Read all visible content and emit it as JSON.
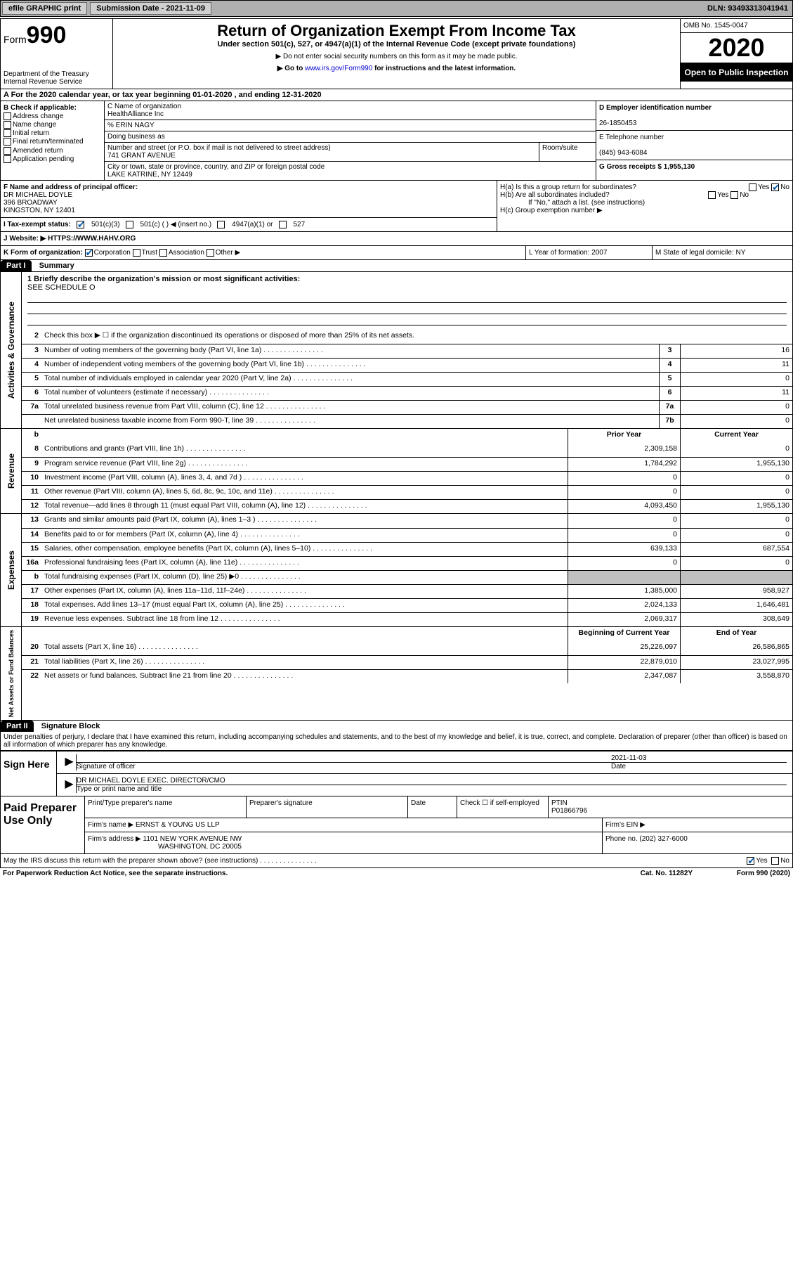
{
  "toolbar": {
    "efile": "efile GRAPHIC print",
    "sub_label": "Submission Date - 2021-11-09",
    "dln": "DLN: 93493313041941"
  },
  "header": {
    "form_label": "Form",
    "form_num": "990",
    "dept": "Department of the Treasury\nInternal Revenue Service",
    "title": "Return of Organization Exempt From Income Tax",
    "subtitle": "Under section 501(c), 527, or 4947(a)(1) of the Internal Revenue Code (except private foundations)",
    "note1": "▶ Do not enter social security numbers on this form as it may be made public.",
    "note2_pre": "▶ Go to ",
    "note2_link": "www.irs.gov/Form990",
    "note2_post": " for instructions and the latest information.",
    "omb": "OMB No. 1545-0047",
    "year": "2020",
    "open": "Open to Public Inspection"
  },
  "row_a": "A For the 2020 calendar year, or tax year beginning 01-01-2020    , and ending 12-31-2020",
  "b": {
    "label": "B Check if applicable:",
    "opts": [
      "Address change",
      "Name change",
      "Initial return",
      "Final return/terminated",
      "Amended return",
      "Application pending"
    ]
  },
  "c": {
    "name_label": "C Name of organization",
    "name": "HealthAlliance Inc",
    "care_of": "% ERIN NAGY",
    "dba_label": "Doing business as",
    "street_label": "Number and street (or P.O. box if mail is not delivered to street address)",
    "street": "741 GRANT AVENUE",
    "suite_label": "Room/suite",
    "city_label": "City or town, state or province, country, and ZIP or foreign postal code",
    "city": "LAKE KATRINE, NY  12449"
  },
  "d": {
    "ein_label": "D Employer identification number",
    "ein": "26-1850453",
    "tel_label": "E Telephone number",
    "tel": "(845) 943-6084",
    "gross_label": "G Gross receipts $ 1,955,130"
  },
  "f": {
    "label": "F  Name and address of principal officer:",
    "name": "DR MICHAEL DOYLE",
    "addr1": "396 BROADWAY",
    "addr2": "KINGSTON, NY  12401"
  },
  "h": {
    "a": "H(a)  Is this a group return for subordinates?",
    "b": "H(b)  Are all subordinates included?",
    "b_note": "If \"No,\" attach a list. (see instructions)",
    "c": "H(c)  Group exemption number ▶"
  },
  "i": {
    "label": "I  Tax-exempt status:",
    "o1": "501(c)(3)",
    "o2": "501(c) (  ) ◀ (insert no.)",
    "o3": "4947(a)(1) or",
    "o4": "527"
  },
  "j": {
    "label": "J  Website: ▶",
    "url": " HTTPS://WWW.HAHV.ORG"
  },
  "k": {
    "label": "K Form of organization:",
    "opts": [
      "Corporation",
      "Trust",
      "Association",
      "Other ▶"
    ],
    "l": "L Year of formation: 2007",
    "m": "M State of legal domicile: NY"
  },
  "part1": {
    "hdr": "Part I",
    "title": "Summary"
  },
  "mission": {
    "q": "1  Briefly describe the organization's mission or most significant activities:",
    "ans": "SEE SCHEDULE O"
  },
  "gov_lines": [
    {
      "n": "2",
      "t": "Check this box ▶ ☐  if the organization discontinued its operations or disposed of more than 25% of its net assets."
    },
    {
      "n": "3",
      "t": "Number of voting members of the governing body (Part VI, line 1a)",
      "b": "3",
      "v": "16"
    },
    {
      "n": "4",
      "t": "Number of independent voting members of the governing body (Part VI, line 1b)",
      "b": "4",
      "v": "11"
    },
    {
      "n": "5",
      "t": "Total number of individuals employed in calendar year 2020 (Part V, line 2a)",
      "b": "5",
      "v": "0"
    },
    {
      "n": "6",
      "t": "Total number of volunteers (estimate if necessary)",
      "b": "6",
      "v": "11"
    },
    {
      "n": "7a",
      "t": "Total unrelated business revenue from Part VIII, column (C), line 12",
      "b": "7a",
      "v": "0"
    },
    {
      "n": "",
      "t": "Net unrelated business taxable income from Form 990-T, line 39",
      "b": "7b",
      "v": "0"
    }
  ],
  "rev_hdr": {
    "py": "Prior Year",
    "cy": "Current Year"
  },
  "rev_lines": [
    {
      "n": "8",
      "t": "Contributions and grants (Part VIII, line 1h)",
      "py": "2,309,158",
      "cy": "0"
    },
    {
      "n": "9",
      "t": "Program service revenue (Part VIII, line 2g)",
      "py": "1,784,292",
      "cy": "1,955,130"
    },
    {
      "n": "10",
      "t": "Investment income (Part VIII, column (A), lines 3, 4, and 7d )",
      "py": "0",
      "cy": "0"
    },
    {
      "n": "11",
      "t": "Other revenue (Part VIII, column (A), lines 5, 6d, 8c, 9c, 10c, and 11e)",
      "py": "0",
      "cy": "0"
    },
    {
      "n": "12",
      "t": "Total revenue—add lines 8 through 11 (must equal Part VIII, column (A), line 12)",
      "py": "4,093,450",
      "cy": "1,955,130"
    }
  ],
  "exp_lines": [
    {
      "n": "13",
      "t": "Grants and similar amounts paid (Part IX, column (A), lines 1–3 )",
      "py": "0",
      "cy": "0"
    },
    {
      "n": "14",
      "t": "Benefits paid to or for members (Part IX, column (A), line 4)",
      "py": "0",
      "cy": "0"
    },
    {
      "n": "15",
      "t": "Salaries, other compensation, employee benefits (Part IX, column (A), lines 5–10)",
      "py": "639,133",
      "cy": "687,554"
    },
    {
      "n": "16a",
      "t": "Professional fundraising fees (Part IX, column (A), line 11e)",
      "py": "0",
      "cy": "0"
    },
    {
      "n": "b",
      "t": "Total fundraising expenses (Part IX, column (D), line 25) ▶0",
      "py": "",
      "cy": "",
      "shaded": true
    },
    {
      "n": "17",
      "t": "Other expenses (Part IX, column (A), lines 11a–11d, 11f–24e)",
      "py": "1,385,000",
      "cy": "958,927"
    },
    {
      "n": "18",
      "t": "Total expenses. Add lines 13–17 (must equal Part IX, column (A), line 25)",
      "py": "2,024,133",
      "cy": "1,646,481"
    },
    {
      "n": "19",
      "t": "Revenue less expenses. Subtract line 18 from line 12",
      "py": "2,069,317",
      "cy": "308,649"
    }
  ],
  "na_hdr": {
    "py": "Beginning of Current Year",
    "cy": "End of Year"
  },
  "na_lines": [
    {
      "n": "20",
      "t": "Total assets (Part X, line 16)",
      "py": "25,226,097",
      "cy": "26,586,865"
    },
    {
      "n": "21",
      "t": "Total liabilities (Part X, line 26)",
      "py": "22,879,010",
      "cy": "23,027,995"
    },
    {
      "n": "22",
      "t": "Net assets or fund balances. Subtract line 21 from line 20",
      "py": "2,347,087",
      "cy": "3,558,870"
    }
  ],
  "part2": {
    "hdr": "Part II",
    "title": "Signature Block"
  },
  "sig": {
    "decl": "Under penalties of perjury, I declare that I have examined this return, including accompanying schedules and statements, and to the best of my knowledge and belief, it is true, correct, and complete. Declaration of preparer (other than officer) is based on all information of which preparer has any knowledge.",
    "here": "Sign Here",
    "officer": "Signature of officer",
    "date": "2021-11-03",
    "date_lbl": "Date",
    "name": "DR MICHAEL DOYLE  EXEC. DIRECTOR/CMO",
    "name_lbl": "Type or print name and title"
  },
  "prep": {
    "label": "Paid Preparer Use Only",
    "h1": "Print/Type preparer's name",
    "h2": "Preparer's signature",
    "h3": "Date",
    "h4": "Check ☐ if self-employed",
    "h5": "PTIN",
    "ptin": "P01866796",
    "firm_lbl": "Firm's name    ▶",
    "firm": "ERNST & YOUNG US LLP",
    "ein_lbl": "Firm's EIN ▶",
    "addr_lbl": "Firm's address ▶",
    "addr1": "1101 NEW YORK AVENUE NW",
    "addr2": "WASHINGTON, DC  20005",
    "phone_lbl": "Phone no. (202) 327-6000"
  },
  "discuss": "May the IRS discuss this return with the preparer shown above? (see instructions)",
  "footer": {
    "l": "For Paperwork Reduction Act Notice, see the separate instructions.",
    "m": "Cat. No. 11282Y",
    "r": "Form 990 (2020)"
  }
}
